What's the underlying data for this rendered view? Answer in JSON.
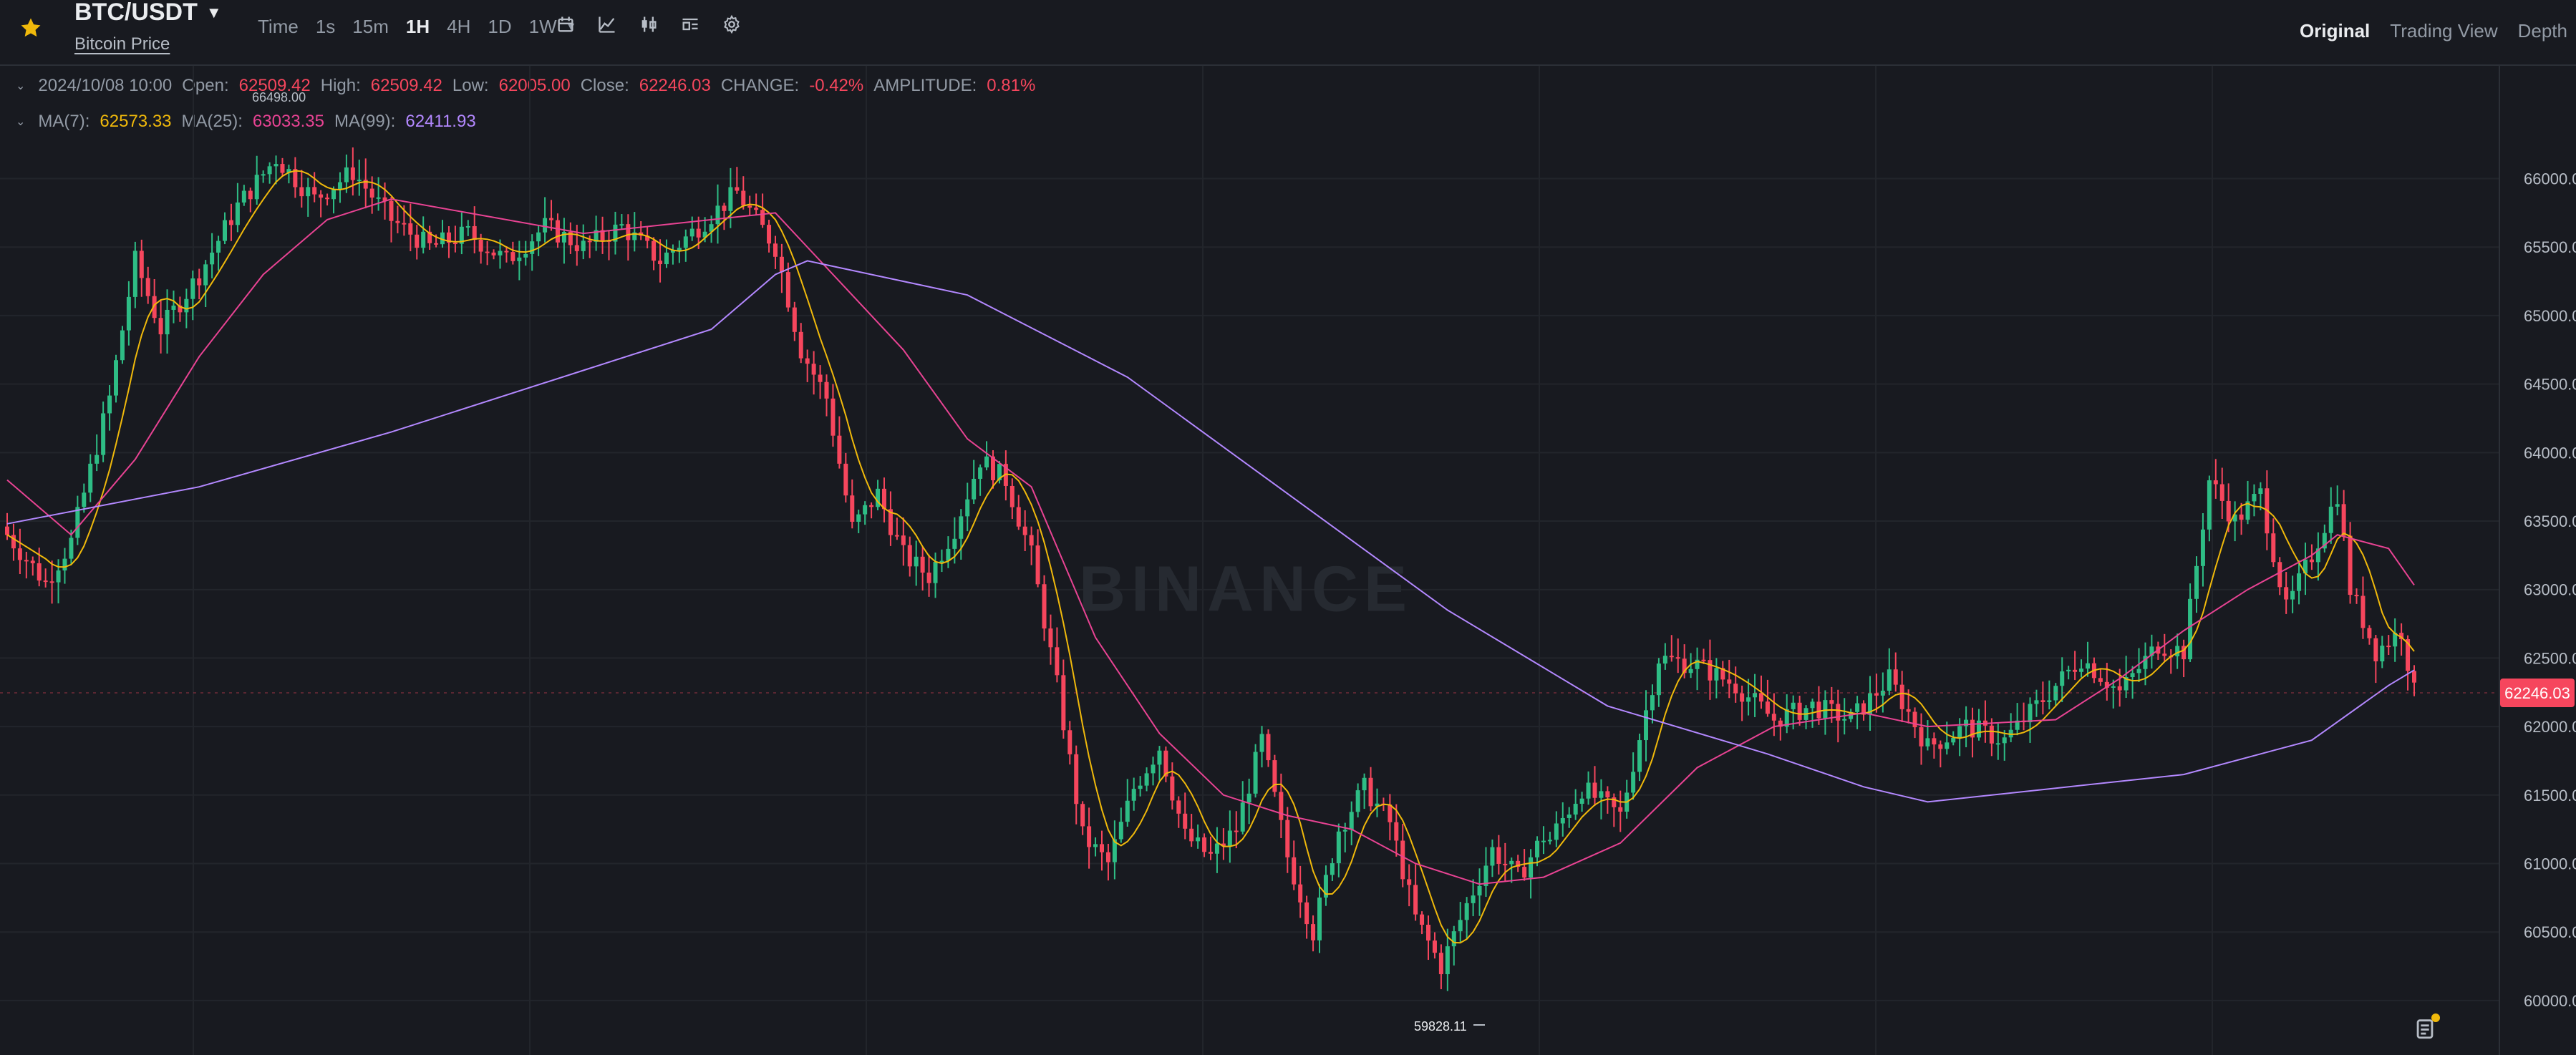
{
  "header": {
    "pair": "BTC/USDT",
    "subtitle": "Bitcoin Price",
    "intervals": [
      {
        "label": "Time",
        "active": false
      },
      {
        "label": "1s",
        "active": false
      },
      {
        "label": "15m",
        "active": false
      },
      {
        "label": "1H",
        "active": true
      },
      {
        "label": "4H",
        "active": false
      },
      {
        "label": "1D",
        "active": false
      },
      {
        "label": "1W",
        "active": false
      }
    ],
    "tool_icons": [
      "calendar-icon",
      "indicator-icon",
      "candle-type-icon",
      "layout-icon",
      "settings-icon"
    ],
    "views": [
      {
        "label": "Original",
        "active": true
      },
      {
        "label": "Trading View",
        "active": false
      },
      {
        "label": "Depth",
        "active": false
      }
    ]
  },
  "ohlc": {
    "date": "2024/10/08 10:00",
    "open_label": "Open:",
    "open": "62509.42",
    "high_label": "High:",
    "high": "62509.42",
    "low_label": "Low:",
    "low": "62005.00",
    "close_label": "Close:",
    "close": "62246.03",
    "change_label": "CHANGE:",
    "change": "-0.42%",
    "amplitude_label": "AMPLITUDE:",
    "amplitude": "0.81%"
  },
  "ma": {
    "ma7_label": "MA(7):",
    "ma7": "62573.33",
    "ma25_label": "MA(25):",
    "ma25": "63033.35",
    "ma99_label": "MA(99):",
    "ma99": "62411.93"
  },
  "colors": {
    "up": "#2ebd85",
    "down": "#f6465d",
    "ma7": "#f0b90b",
    "ma25": "#e84393",
    "ma99": "#b388ff",
    "background": "#181a20",
    "grid": "#22252b"
  },
  "chart_data": {
    "type": "candlestick",
    "watermark": "BINANCE",
    "y_ticks": [
      66000,
      65500,
      65000,
      64500,
      64000,
      63500,
      63000,
      62500,
      62000,
      61500,
      61000,
      60500,
      60000
    ],
    "ylim": [
      59780,
      66520
    ],
    "current_price": "62246.03",
    "high_marker": "66498.00",
    "low_marker": "59828.11",
    "candle_count": 240,
    "anchors": [
      [
        0,
        63400
      ],
      [
        6,
        63050
      ],
      [
        10,
        63350
      ],
      [
        16,
        64400
      ],
      [
        20,
        65400
      ],
      [
        24,
        64900
      ],
      [
        30,
        65300
      ],
      [
        36,
        65800
      ],
      [
        42,
        66150
      ],
      [
        48,
        65850
      ],
      [
        54,
        66050
      ],
      [
        60,
        65700
      ],
      [
        66,
        65500
      ],
      [
        72,
        65600
      ],
      [
        78,
        65400
      ],
      [
        84,
        65650
      ],
      [
        90,
        65500
      ],
      [
        96,
        65650
      ],
      [
        102,
        65400
      ],
      [
        108,
        65650
      ],
      [
        114,
        65900
      ],
      [
        120,
        65500
      ],
      [
        124,
        64750
      ],
      [
        128,
        64400
      ],
      [
        132,
        63450
      ],
      [
        136,
        63700
      ],
      [
        140,
        63250
      ],
      [
        144,
        63100
      ],
      [
        148,
        63450
      ],
      [
        152,
        63950
      ],
      [
        156,
        63800
      ],
      [
        160,
        63250
      ],
      [
        164,
        62300
      ],
      [
        168,
        61200
      ],
      [
        172,
        61000
      ],
      [
        176,
        61550
      ],
      [
        180,
        61850
      ],
      [
        184,
        61200
      ],
      [
        188,
        61050
      ],
      [
        192,
        61250
      ],
      [
        196,
        61900
      ],
      [
        200,
        61050
      ],
      [
        204,
        60500
      ],
      [
        208,
        61250
      ],
      [
        212,
        61550
      ],
      [
        216,
        61300
      ],
      [
        220,
        60600
      ],
      [
        224,
        60250
      ],
      [
        228,
        60700
      ],
      [
        232,
        61100
      ],
      [
        236,
        60900
      ],
      [
        240,
        61200
      ]
    ],
    "anchors_right": [
      [
        0,
        61100
      ],
      [
        6,
        61550
      ],
      [
        12,
        61350
      ],
      [
        18,
        62500
      ],
      [
        24,
        62450
      ],
      [
        30,
        62300
      ],
      [
        36,
        62050
      ],
      [
        42,
        62150
      ],
      [
        48,
        62050
      ],
      [
        54,
        62350
      ],
      [
        60,
        61850
      ],
      [
        66,
        62000
      ],
      [
        72,
        61900
      ],
      [
        78,
        62200
      ],
      [
        84,
        62500
      ],
      [
        90,
        62250
      ],
      [
        96,
        62600
      ],
      [
        100,
        62550
      ],
      [
        104,
        63800
      ],
      [
        108,
        63500
      ],
      [
        112,
        63700
      ],
      [
        116,
        62850
      ],
      [
        120,
        63250
      ],
      [
        124,
        63700
      ],
      [
        126,
        63000
      ],
      [
        130,
        62550
      ],
      [
        134,
        62700
      ],
      [
        136,
        62246
      ]
    ],
    "ma99_points": [
      [
        0,
        63480
      ],
      [
        30,
        63750
      ],
      [
        60,
        64150
      ],
      [
        90,
        64600
      ],
      [
        110,
        64900
      ],
      [
        120,
        65300
      ],
      [
        125,
        65400
      ],
      [
        150,
        65150
      ],
      [
        175,
        64550
      ],
      [
        200,
        63700
      ],
      [
        225,
        62850
      ],
      [
        250,
        62150
      ],
      [
        275,
        61800
      ],
      [
        290,
        61560
      ],
      [
        300,
        61450
      ],
      [
        320,
        61550
      ],
      [
        340,
        61650
      ],
      [
        360,
        61900
      ],
      [
        372,
        62300
      ],
      [
        376,
        62412
      ]
    ],
    "ma25_points": [
      [
        0,
        63800
      ],
      [
        10,
        63400
      ],
      [
        20,
        63950
      ],
      [
        30,
        64700
      ],
      [
        40,
        65300
      ],
      [
        50,
        65700
      ],
      [
        60,
        65850
      ],
      [
        72,
        65750
      ],
      [
        90,
        65600
      ],
      [
        110,
        65700
      ],
      [
        120,
        65750
      ],
      [
        130,
        65250
      ],
      [
        140,
        64750
      ],
      [
        150,
        64100
      ],
      [
        160,
        63750
      ],
      [
        170,
        62650
      ],
      [
        180,
        61950
      ],
      [
        190,
        61500
      ],
      [
        200,
        61350
      ],
      [
        210,
        61250
      ],
      [
        220,
        61000
      ],
      [
        230,
        60850
      ],
      [
        240,
        60900
      ],
      [
        252,
        61150
      ],
      [
        264,
        61700
      ],
      [
        276,
        62000
      ],
      [
        290,
        62100
      ],
      [
        300,
        62000
      ],
      [
        320,
        62050
      ],
      [
        330,
        62350
      ],
      [
        340,
        62700
      ],
      [
        350,
        63000
      ],
      [
        360,
        63250
      ],
      [
        364,
        63400
      ],
      [
        372,
        63300
      ],
      [
        376,
        63033
      ]
    ]
  }
}
